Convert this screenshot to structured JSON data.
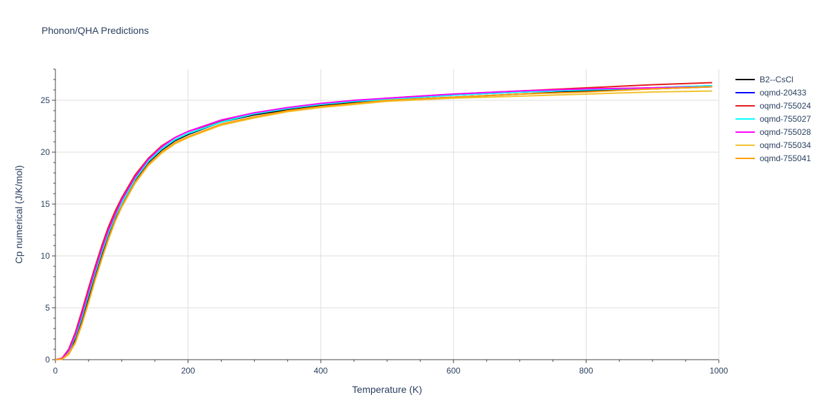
{
  "chart_data": {
    "type": "line",
    "title": "Phonon/QHA Predictions",
    "xlabel": "Temperature (K)",
    "ylabel": "Cp numerical (J/K/mol)",
    "xlim": [
      0,
      1000
    ],
    "ylim": [
      0,
      28
    ],
    "x_ticks": [
      0,
      200,
      400,
      600,
      800,
      1000
    ],
    "y_ticks": [
      0,
      5,
      10,
      15,
      20,
      25
    ],
    "grid": true,
    "legend_position": "right",
    "x": [
      0,
      10,
      20,
      30,
      40,
      50,
      60,
      70,
      80,
      90,
      100,
      120,
      140,
      160,
      180,
      200,
      250,
      300,
      350,
      400,
      450,
      500,
      600,
      700,
      800,
      900,
      990
    ],
    "series": [
      {
        "name": "B2--CsCl",
        "color": "#000000",
        "values": [
          0,
          0.1,
          0.7,
          2.0,
          3.9,
          6.0,
          8.2,
          10.2,
          12.0,
          13.6,
          15.0,
          17.3,
          19.0,
          20.2,
          21.1,
          21.7,
          22.9,
          23.6,
          24.1,
          24.5,
          24.8,
          25.0,
          25.3,
          25.6,
          25.9,
          26.1,
          26.3
        ]
      },
      {
        "name": "oqmd-20433",
        "color": "#0000ff",
        "values": [
          0,
          0.1,
          0.8,
          2.2,
          4.1,
          6.3,
          8.4,
          10.4,
          12.2,
          13.8,
          15.1,
          17.4,
          19.1,
          20.3,
          21.2,
          21.8,
          22.9,
          23.7,
          24.2,
          24.6,
          24.9,
          25.1,
          25.5,
          25.8,
          26.0,
          26.2,
          26.4
        ]
      },
      {
        "name": "oqmd-755024",
        "color": "#e31a1c",
        "values": [
          0,
          0.15,
          1.0,
          2.6,
          4.7,
          6.9,
          9.0,
          11.0,
          12.8,
          14.3,
          15.6,
          17.8,
          19.4,
          20.6,
          21.4,
          22.0,
          23.0,
          23.7,
          24.2,
          24.6,
          24.9,
          25.2,
          25.6,
          25.9,
          26.2,
          26.5,
          26.7
        ]
      },
      {
        "name": "oqmd-755027",
        "color": "#00ffff",
        "values": [
          0,
          0.1,
          0.8,
          2.2,
          4.1,
          6.3,
          8.4,
          10.4,
          12.2,
          13.8,
          15.1,
          17.4,
          19.1,
          20.3,
          21.2,
          21.8,
          22.9,
          23.7,
          24.2,
          24.6,
          24.9,
          25.1,
          25.5,
          25.8,
          26.0,
          26.2,
          26.4
        ]
      },
      {
        "name": "oqmd-755028",
        "color": "#ff00ff",
        "values": [
          0,
          0.1,
          0.9,
          2.4,
          4.4,
          6.6,
          8.7,
          10.7,
          12.5,
          14.0,
          15.4,
          17.6,
          19.3,
          20.5,
          21.4,
          22.0,
          23.1,
          23.8,
          24.3,
          24.7,
          25.0,
          25.2,
          25.6,
          25.9,
          26.1,
          26.2,
          26.3
        ]
      },
      {
        "name": "oqmd-755034",
        "color": "#f2c12e",
        "values": [
          0,
          0.05,
          0.5,
          1.6,
          3.4,
          5.5,
          7.7,
          9.7,
          11.6,
          13.3,
          14.7,
          17.0,
          18.7,
          19.9,
          20.8,
          21.4,
          22.6,
          23.3,
          23.9,
          24.3,
          24.6,
          24.9,
          25.2,
          25.4,
          25.6,
          25.8,
          25.9
        ]
      },
      {
        "name": "oqmd-755041",
        "color": "#ff9f0a",
        "values": [
          0,
          0.05,
          0.6,
          1.7,
          3.5,
          5.6,
          7.8,
          9.8,
          11.7,
          13.4,
          14.8,
          17.1,
          18.8,
          20.0,
          20.9,
          21.5,
          22.7,
          23.4,
          24.0,
          24.4,
          24.7,
          25.0,
          25.3,
          25.6,
          25.8,
          26.1,
          26.3
        ]
      }
    ]
  }
}
